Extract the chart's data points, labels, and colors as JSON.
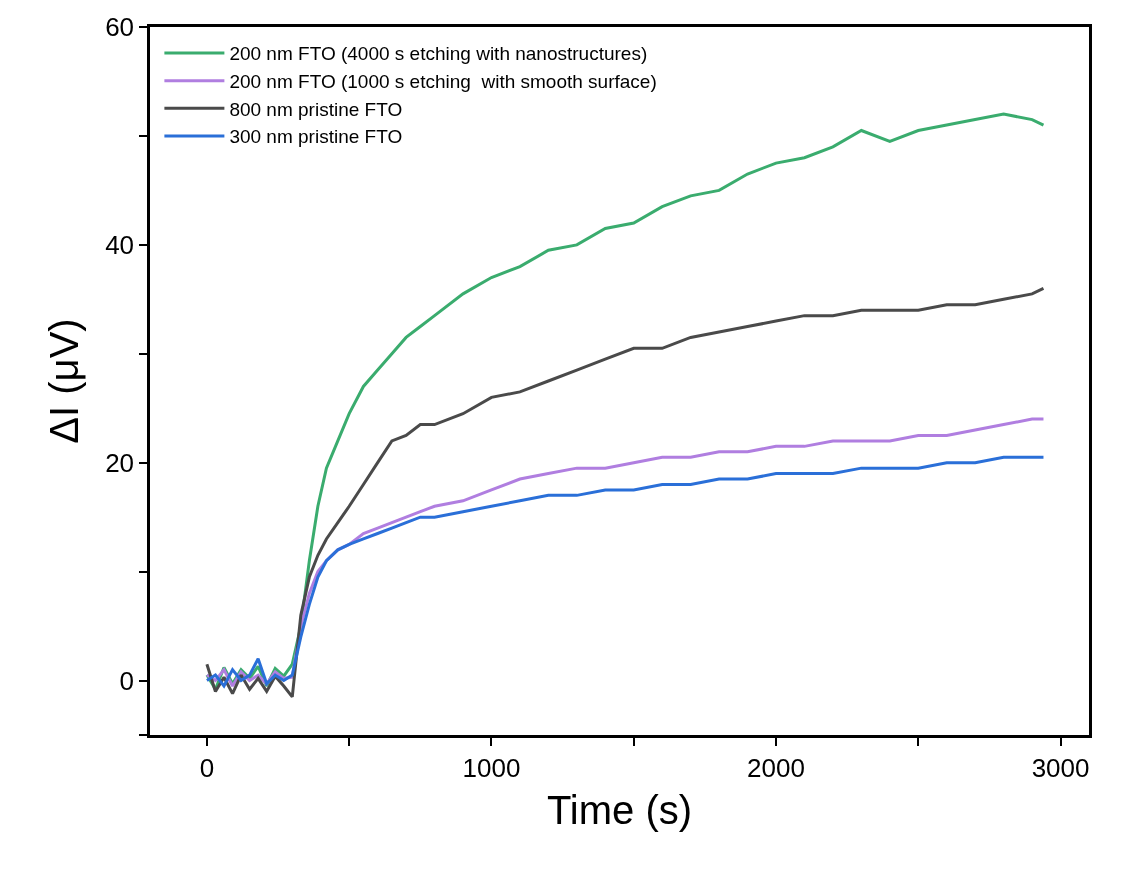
{
  "chart_data": {
    "type": "line",
    "xlabel": "Time (s)",
    "ylabel": "ΔI (μV)",
    "x": [
      0,
      30,
      60,
      90,
      120,
      150,
      180,
      210,
      240,
      270,
      300,
      330,
      360,
      390,
      420,
      460,
      500,
      550,
      600,
      650,
      700,
      750,
      800,
      900,
      1000,
      1100,
      1200,
      1300,
      1400,
      1500,
      1600,
      1700,
      1800,
      1900,
      2000,
      2100,
      2200,
      2300,
      2400,
      2500,
      2600,
      2700,
      2800,
      2900,
      2940
    ],
    "series": [
      {
        "name": "200 nm FTO (4000 s etching with nanostructures)",
        "color": "#3aac6e",
        "values": [
          0.5,
          -0.8,
          1.2,
          -0.3,
          1.0,
          0.2,
          1.3,
          -0.5,
          1.1,
          0.4,
          1.5,
          5,
          11,
          16,
          19.5,
          22,
          24.5,
          27,
          28.5,
          30,
          31.5,
          32.5,
          33.5,
          35.5,
          37,
          38,
          39.5,
          40,
          41.5,
          42,
          43.5,
          44.5,
          45,
          46.5,
          47.5,
          48,
          49,
          50.5,
          49.5,
          50.5,
          51,
          51.5,
          52,
          51.5,
          51
        ]
      },
      {
        "name": "200 nm FTO (1000 s etching  with smooth surface)",
        "color": "#b07ee0",
        "values": [
          0.5,
          0,
          1,
          -0.5,
          0.8,
          0,
          0.5,
          -0.3,
          0.8,
          0.2,
          0.3,
          5,
          8,
          10,
          11,
          12,
          12.5,
          13.5,
          14,
          14.5,
          15,
          15.5,
          16,
          16.5,
          17.5,
          18.5,
          19,
          19.5,
          19.5,
          20,
          20.5,
          20.5,
          21,
          21,
          21.5,
          21.5,
          22,
          22,
          22,
          22.5,
          22.5,
          23,
          23.5,
          24,
          24
        ]
      },
      {
        "name": "800 nm pristine FTO",
        "color": "#4a4a4a",
        "values": [
          1.5,
          -1.0,
          0.3,
          -1.2,
          0.5,
          -0.8,
          0.2,
          -1.0,
          0.4,
          -0.5,
          -1.5,
          6,
          9.5,
          11.5,
          13,
          14.5,
          16,
          18,
          20,
          22,
          22.5,
          23.5,
          23.5,
          24.5,
          26,
          26.5,
          27.5,
          28.5,
          29.5,
          30.5,
          30.5,
          31.5,
          32,
          32.5,
          33,
          33.5,
          33.5,
          34,
          34,
          34,
          34.5,
          34.5,
          35,
          35.5,
          36
        ]
      },
      {
        "name": "300 nm pristine FTO",
        "color": "#2a6fd8",
        "values": [
          0,
          0.5,
          -0.5,
          1,
          0,
          0.5,
          2,
          -0.3,
          0.5,
          0,
          0.5,
          4,
          7,
          9.5,
          11,
          12,
          12.5,
          13,
          13.5,
          14,
          14.5,
          15,
          15,
          15.5,
          16,
          16.5,
          17,
          17,
          17.5,
          17.5,
          18,
          18,
          18.5,
          18.5,
          19,
          19,
          19,
          19.5,
          19.5,
          19.5,
          20,
          20,
          20.5,
          20.5,
          20.5
        ]
      }
    ],
    "xlim": [
      -200,
      3100
    ],
    "xticks": [
      0,
      {
        "value": 500,
        "label": null
      },
      1000,
      {
        "value": 1500,
        "label": null
      },
      2000,
      {
        "value": 2500,
        "label": null
      },
      3000
    ],
    "ylim": [
      -5,
      60
    ],
    "yticks": [
      {
        "value": -5,
        "label": null
      },
      0,
      {
        "value": 10,
        "label": null
      },
      20,
      {
        "value": 30,
        "label": null
      },
      40,
      {
        "value": 50,
        "label": null
      },
      60
    ],
    "legend": "top left",
    "marker": "none",
    "line_style": "solid"
  }
}
